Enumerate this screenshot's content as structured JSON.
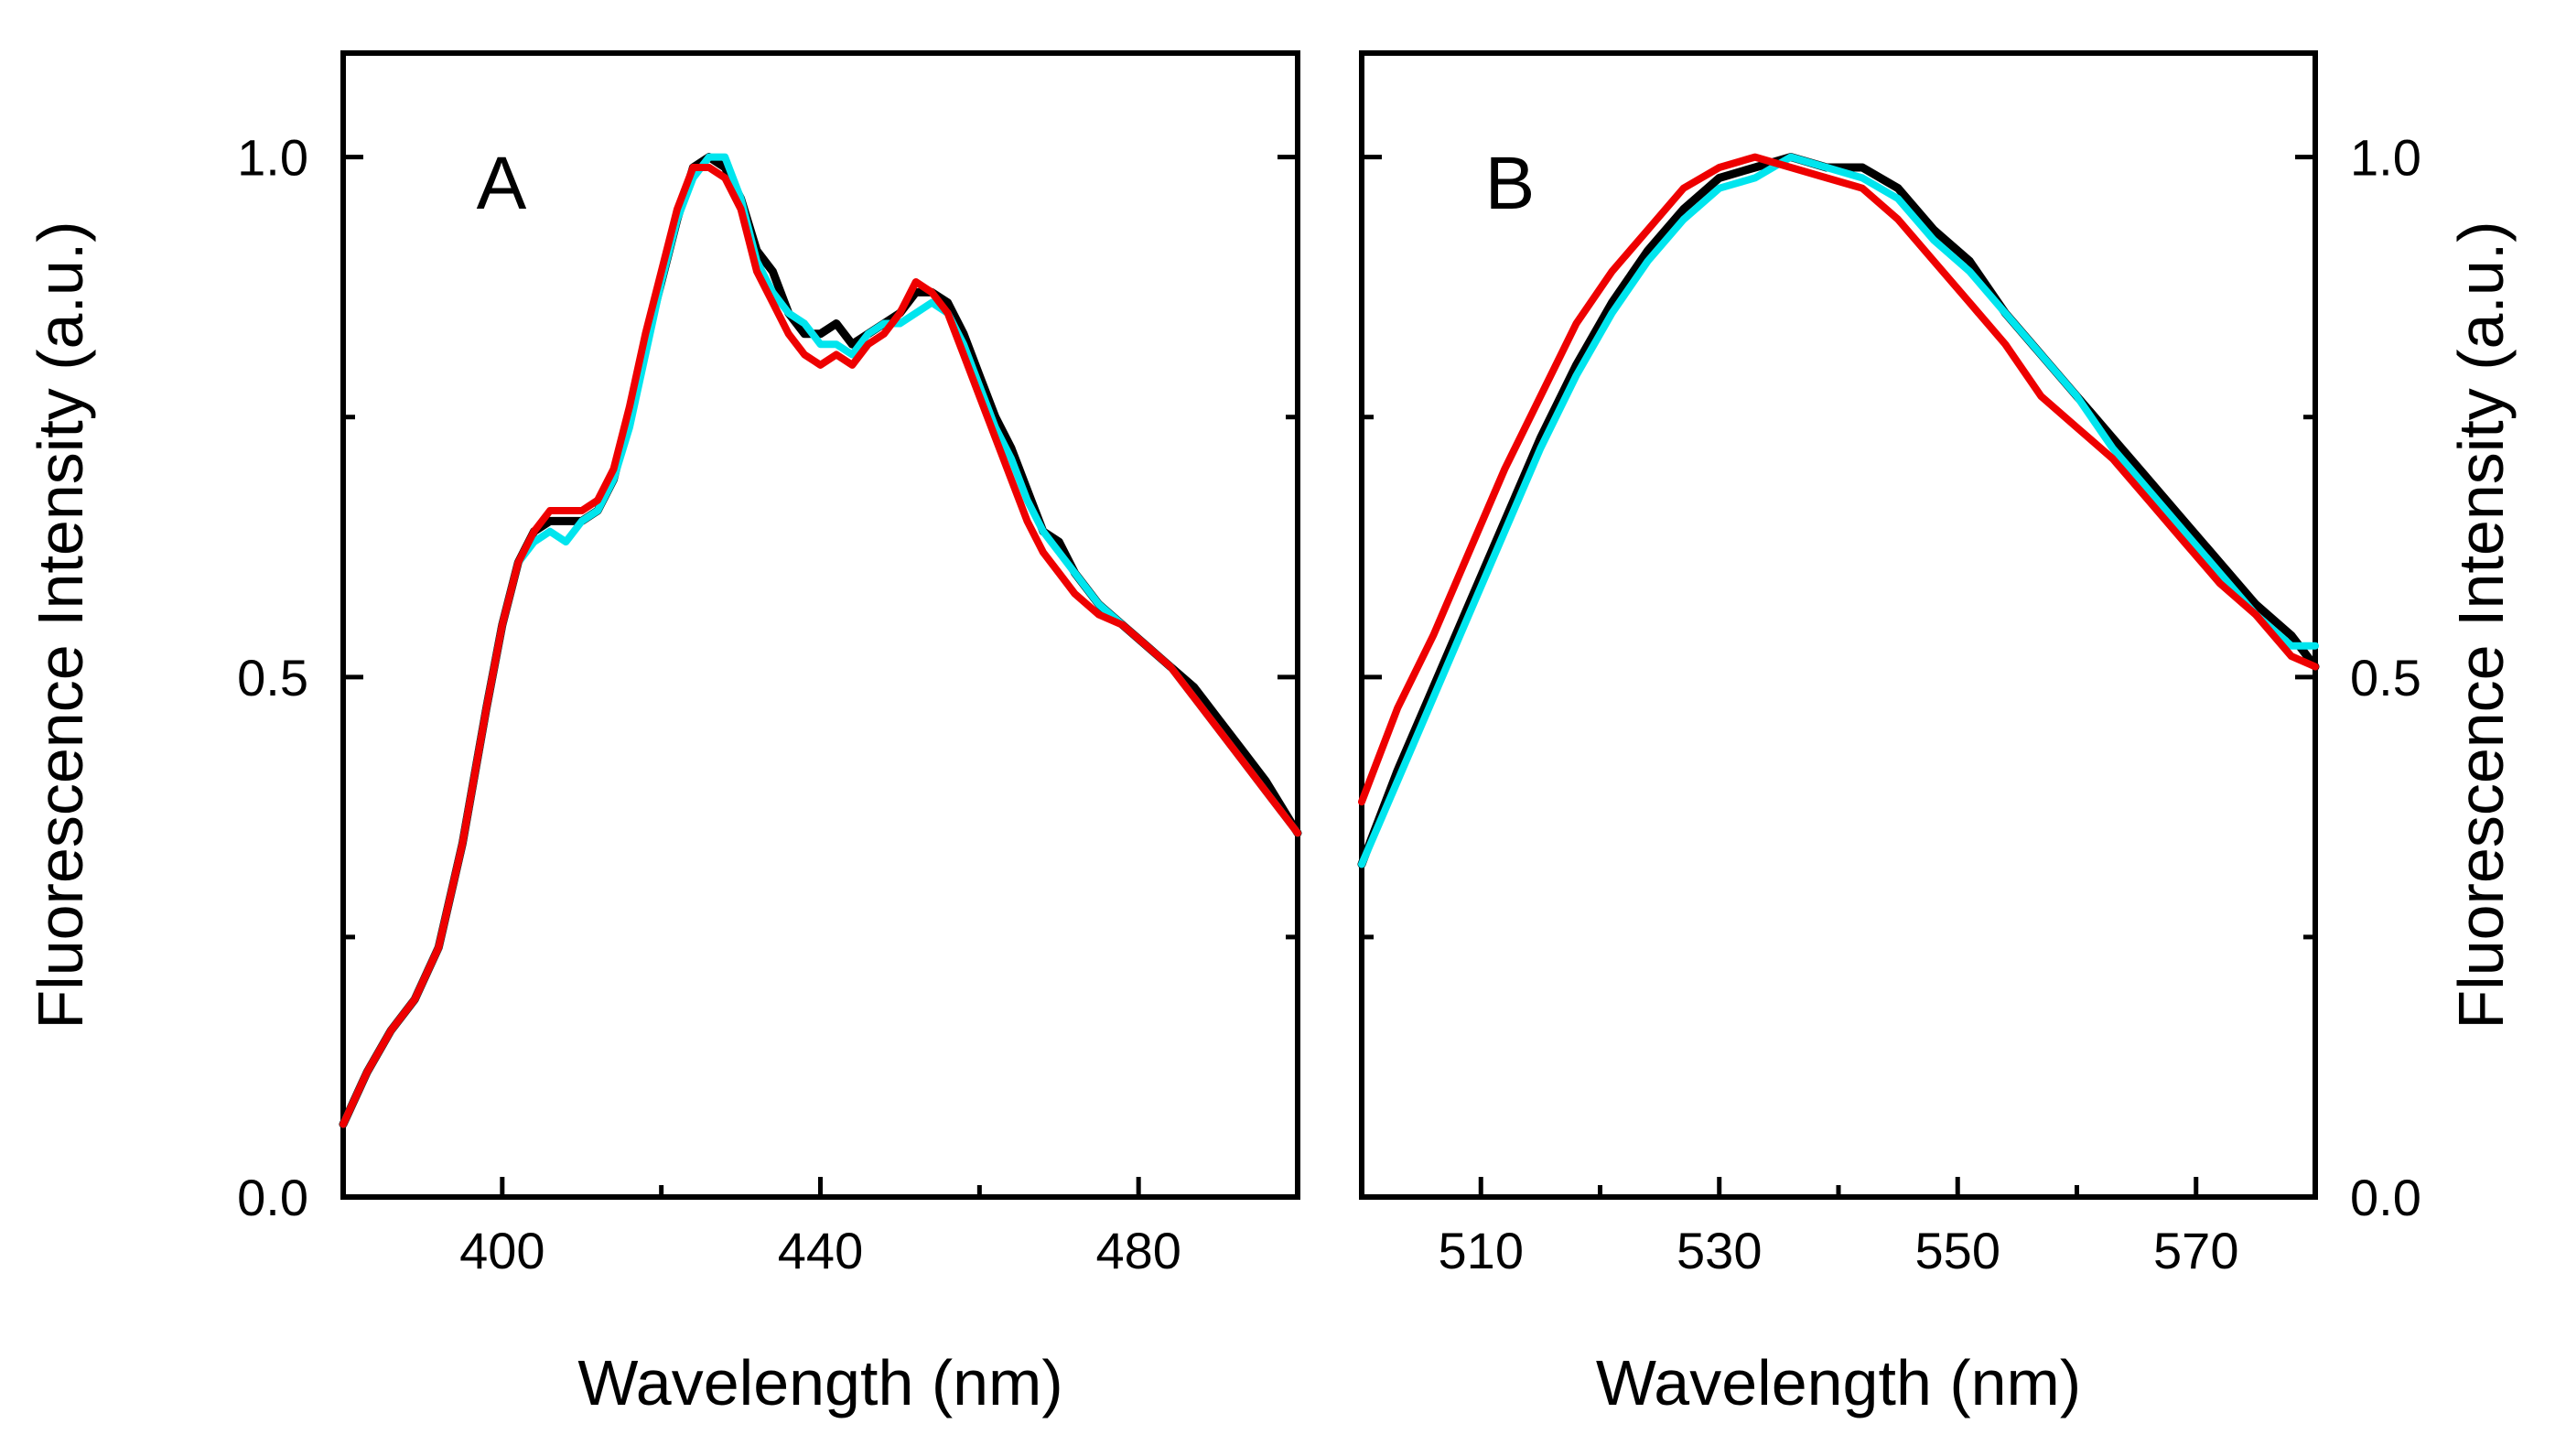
{
  "chart_data": [
    {
      "panel": "A",
      "type": "line",
      "xlabel": "Wavelength (nm)",
      "ylabel": "Fluorescence Intensity (a.u.)",
      "xlim": [
        380,
        500
      ],
      "ylim": [
        0.0,
        1.1
      ],
      "xticks": [
        400,
        440,
        480
      ],
      "xticks_minor": [
        420,
        460
      ],
      "yticks": [
        0.0,
        0.5,
        1.0
      ],
      "yticks_minor": [
        0.25,
        0.75
      ],
      "ylabel_side": "left",
      "series": [
        {
          "name": "black",
          "color": "#000000",
          "x": [
            380,
            383,
            386,
            389,
            392,
            395,
            398,
            400,
            402,
            404,
            406,
            408,
            410,
            412,
            414,
            416,
            418,
            420,
            422,
            424,
            426,
            428,
            430,
            432,
            434,
            436,
            438,
            440,
            442,
            444,
            446,
            448,
            450,
            452,
            454,
            456,
            458,
            460,
            462,
            464,
            466,
            468,
            470,
            472,
            475,
            478,
            481,
            484,
            487,
            490,
            493,
            496,
            500
          ],
          "y": [
            0.07,
            0.12,
            0.16,
            0.19,
            0.24,
            0.34,
            0.47,
            0.55,
            0.61,
            0.64,
            0.65,
            0.65,
            0.65,
            0.66,
            0.69,
            0.75,
            0.82,
            0.88,
            0.94,
            0.99,
            1.0,
            0.99,
            0.96,
            0.91,
            0.89,
            0.85,
            0.83,
            0.83,
            0.84,
            0.82,
            0.83,
            0.84,
            0.85,
            0.87,
            0.87,
            0.86,
            0.83,
            0.79,
            0.75,
            0.72,
            0.68,
            0.64,
            0.63,
            0.6,
            0.57,
            0.55,
            0.53,
            0.51,
            0.49,
            0.46,
            0.43,
            0.4,
            0.35
          ]
        },
        {
          "name": "cyan",
          "color": "#00e5ee",
          "x": [
            380,
            383,
            386,
            389,
            392,
            395,
            398,
            400,
            402,
            404,
            406,
            408,
            410,
            412,
            414,
            416,
            418,
            420,
            422,
            424,
            426,
            428,
            430,
            432,
            434,
            436,
            438,
            440,
            442,
            444,
            446,
            448,
            450,
            452,
            454,
            456,
            458,
            460,
            462,
            464,
            466,
            468,
            470,
            472,
            475,
            478,
            481,
            484,
            487,
            490,
            493,
            496,
            500
          ],
          "y": [
            0.07,
            0.12,
            0.16,
            0.19,
            0.24,
            0.34,
            0.47,
            0.55,
            0.61,
            0.63,
            0.64,
            0.63,
            0.65,
            0.66,
            0.69,
            0.74,
            0.81,
            0.88,
            0.94,
            0.98,
            1.0,
            1.0,
            0.96,
            0.9,
            0.87,
            0.85,
            0.84,
            0.82,
            0.82,
            0.81,
            0.83,
            0.84,
            0.84,
            0.85,
            0.86,
            0.85,
            0.82,
            0.78,
            0.74,
            0.71,
            0.67,
            0.64,
            0.62,
            0.6,
            0.57,
            0.55,
            0.53,
            0.51,
            0.48,
            0.45,
            0.42,
            0.39,
            0.35
          ]
        },
        {
          "name": "red",
          "color": "#ee0000",
          "x": [
            380,
            383,
            386,
            389,
            392,
            395,
            398,
            400,
            402,
            404,
            406,
            408,
            410,
            412,
            414,
            416,
            418,
            420,
            422,
            424,
            426,
            428,
            430,
            432,
            434,
            436,
            438,
            440,
            442,
            444,
            446,
            448,
            450,
            452,
            454,
            456,
            458,
            460,
            462,
            464,
            466,
            468,
            470,
            472,
            475,
            478,
            481,
            484,
            487,
            490,
            493,
            496,
            500
          ],
          "y": [
            0.07,
            0.12,
            0.16,
            0.19,
            0.24,
            0.34,
            0.47,
            0.55,
            0.61,
            0.64,
            0.66,
            0.66,
            0.66,
            0.67,
            0.7,
            0.76,
            0.83,
            0.89,
            0.95,
            0.99,
            0.99,
            0.98,
            0.95,
            0.89,
            0.86,
            0.83,
            0.81,
            0.8,
            0.81,
            0.8,
            0.82,
            0.83,
            0.85,
            0.88,
            0.87,
            0.85,
            0.81,
            0.77,
            0.73,
            0.69,
            0.65,
            0.62,
            0.6,
            0.58,
            0.56,
            0.55,
            0.53,
            0.51,
            0.48,
            0.45,
            0.42,
            0.39,
            0.35
          ]
        }
      ]
    },
    {
      "panel": "B",
      "type": "line",
      "xlabel": "Wavelength (nm)",
      "ylabel": "Fluorescence Intensity (a.u.)",
      "xlim": [
        500,
        580
      ],
      "ylim": [
        0.0,
        1.1
      ],
      "xticks": [
        510,
        530,
        550,
        570
      ],
      "xticks_minor": [
        520,
        540,
        560
      ],
      "yticks": [
        0.0,
        0.5,
        1.0
      ],
      "yticks_minor": [
        0.25,
        0.75
      ],
      "ylabel_side": "right",
      "series": [
        {
          "name": "black",
          "color": "#000000",
          "x": [
            500,
            503,
            506,
            509,
            512,
            515,
            518,
            521,
            524,
            527,
            530,
            533,
            536,
            539,
            542,
            545,
            548,
            551,
            554,
            557,
            560,
            563,
            566,
            569,
            572,
            575,
            578,
            580
          ],
          "y": [
            0.32,
            0.41,
            0.49,
            0.57,
            0.65,
            0.73,
            0.8,
            0.86,
            0.91,
            0.95,
            0.98,
            0.99,
            1.0,
            0.99,
            0.99,
            0.97,
            0.93,
            0.9,
            0.85,
            0.81,
            0.77,
            0.73,
            0.69,
            0.65,
            0.61,
            0.57,
            0.54,
            0.51
          ]
        },
        {
          "name": "cyan",
          "color": "#00e5ee",
          "x": [
            500,
            503,
            506,
            509,
            512,
            515,
            518,
            521,
            524,
            527,
            530,
            533,
            536,
            539,
            542,
            545,
            548,
            551,
            554,
            557,
            560,
            563,
            566,
            569,
            572,
            575,
            578,
            580
          ],
          "y": [
            0.32,
            0.4,
            0.48,
            0.56,
            0.64,
            0.72,
            0.79,
            0.85,
            0.9,
            0.94,
            0.97,
            0.98,
            1.0,
            0.99,
            0.98,
            0.96,
            0.92,
            0.89,
            0.85,
            0.81,
            0.77,
            0.72,
            0.68,
            0.64,
            0.6,
            0.56,
            0.53,
            0.53
          ]
        },
        {
          "name": "red",
          "color": "#ee0000",
          "x": [
            500,
            503,
            506,
            509,
            512,
            515,
            518,
            521,
            524,
            527,
            530,
            533,
            536,
            539,
            542,
            545,
            548,
            551,
            554,
            557,
            560,
            563,
            566,
            569,
            572,
            575,
            578,
            580
          ],
          "y": [
            0.38,
            0.47,
            0.54,
            0.62,
            0.7,
            0.77,
            0.84,
            0.89,
            0.93,
            0.97,
            0.99,
            1.0,
            0.99,
            0.98,
            0.97,
            0.94,
            0.9,
            0.86,
            0.82,
            0.77,
            0.74,
            0.71,
            0.67,
            0.63,
            0.59,
            0.56,
            0.52,
            0.51
          ]
        }
      ]
    }
  ]
}
